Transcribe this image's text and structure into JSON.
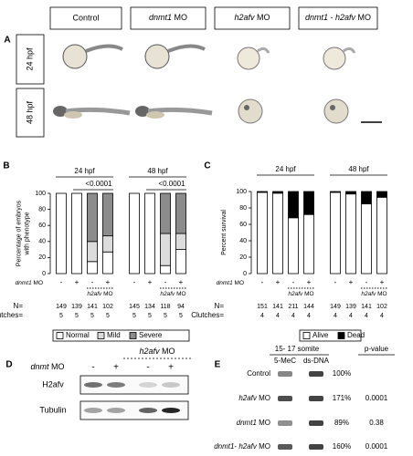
{
  "panel_a": {
    "panel_label": "A",
    "columns": [
      "Control",
      "dnmt1 MO",
      "h2afv MO",
      "dnmt1 - h2afv MO"
    ],
    "rows": [
      "24 hpf",
      "48 hpf"
    ]
  },
  "chart_data": [
    {
      "type": "bar",
      "stacked": true,
      "panel_label": "B",
      "y_label": [
        "Percentage of embryos",
        "with phenotype"
      ],
      "ylim": [
        0,
        100
      ],
      "yticks": [
        0,
        20,
        40,
        60,
        80,
        100
      ],
      "groups": [
        {
          "label": "24 hpf",
          "p_value": "<0.0001",
          "h2afv_label": "h2afv MO"
        },
        {
          "label": "48 hpf",
          "p_value": "<0.0001",
          "h2afv_label": "h2afv MO"
        }
      ],
      "dnmt1_label": "dnmt1 MO",
      "dnmt1_row": [
        "-",
        "+",
        "-",
        "+",
        "-",
        "+",
        "-",
        "+"
      ],
      "n_label": "N=",
      "n": [
        149,
        139,
        141,
        102,
        145,
        134,
        118,
        94
      ],
      "clutches_label": "Clutches=",
      "clutches": [
        5,
        5,
        5,
        5,
        5,
        5,
        5,
        5
      ],
      "series": [
        {
          "name": "Normal",
          "color": "#ffffff",
          "values": [
            100,
            100,
            15,
            27,
            100,
            100,
            10,
            30
          ]
        },
        {
          "name": "Mild",
          "color": "#dcdcdc",
          "values": [
            0,
            0,
            25,
            20,
            0,
            0,
            40,
            20
          ]
        },
        {
          "name": "Severe",
          "color": "#8c8c8c",
          "values": [
            0,
            0,
            60,
            53,
            0,
            0,
            50,
            50
          ]
        }
      ]
    },
    {
      "type": "bar",
      "stacked": true,
      "panel_label": "C",
      "y_label": [
        "Percent survival"
      ],
      "ylim": [
        0,
        100
      ],
      "yticks": [
        0,
        20,
        40,
        60,
        80,
        100
      ],
      "groups": [
        {
          "label": "24 hpf",
          "h2afv_label": "h2afv MO"
        },
        {
          "label": "48 hpf",
          "h2afv_label": "h2afv MO"
        }
      ],
      "dnmt1_label": "dnmt1 MO",
      "dnmt1_row": [
        "-",
        "+",
        "-",
        "+",
        "-",
        "+",
        "-",
        "+"
      ],
      "n_label": "N=",
      "n": [
        151,
        141,
        211,
        144,
        149,
        139,
        141,
        102
      ],
      "clutches_label": "Clutches=",
      "clutches": [
        4,
        4,
        4,
        4,
        4,
        4,
        4,
        4
      ],
      "series": [
        {
          "name": "Alive",
          "color": "#ffffff",
          "values": [
            99,
            98,
            68,
            72,
            99,
            97,
            85,
            93
          ]
        },
        {
          "name": "Dead",
          "color": "#000000",
          "values": [
            1,
            2,
            32,
            28,
            1,
            3,
            15,
            7
          ]
        }
      ]
    }
  ],
  "panel_d": {
    "panel_label": "D",
    "h2afv_label": "h2afv MO",
    "dnmt_label": "dnmt MO",
    "signs": [
      "-",
      "+",
      "-",
      "+"
    ],
    "rows": [
      "H2afv",
      "Tubulin"
    ]
  },
  "panel_e": {
    "panel_label": "E",
    "stage": "15- 17 somite",
    "columns": [
      "5-MeC",
      "ds-DNA"
    ],
    "p_header": "p-value",
    "rows": [
      {
        "label": "Control",
        "percent": "100%"
      },
      {
        "label": "h2afv MO",
        "percent": "171%",
        "p_value": "0.0001"
      },
      {
        "label": "dnmt1 MO",
        "percent": "89%",
        "p_value": "0.38"
      },
      {
        "label": "dnmt1- h2afv MO",
        "percent": "160%",
        "p_value": "0.0001"
      }
    ]
  }
}
